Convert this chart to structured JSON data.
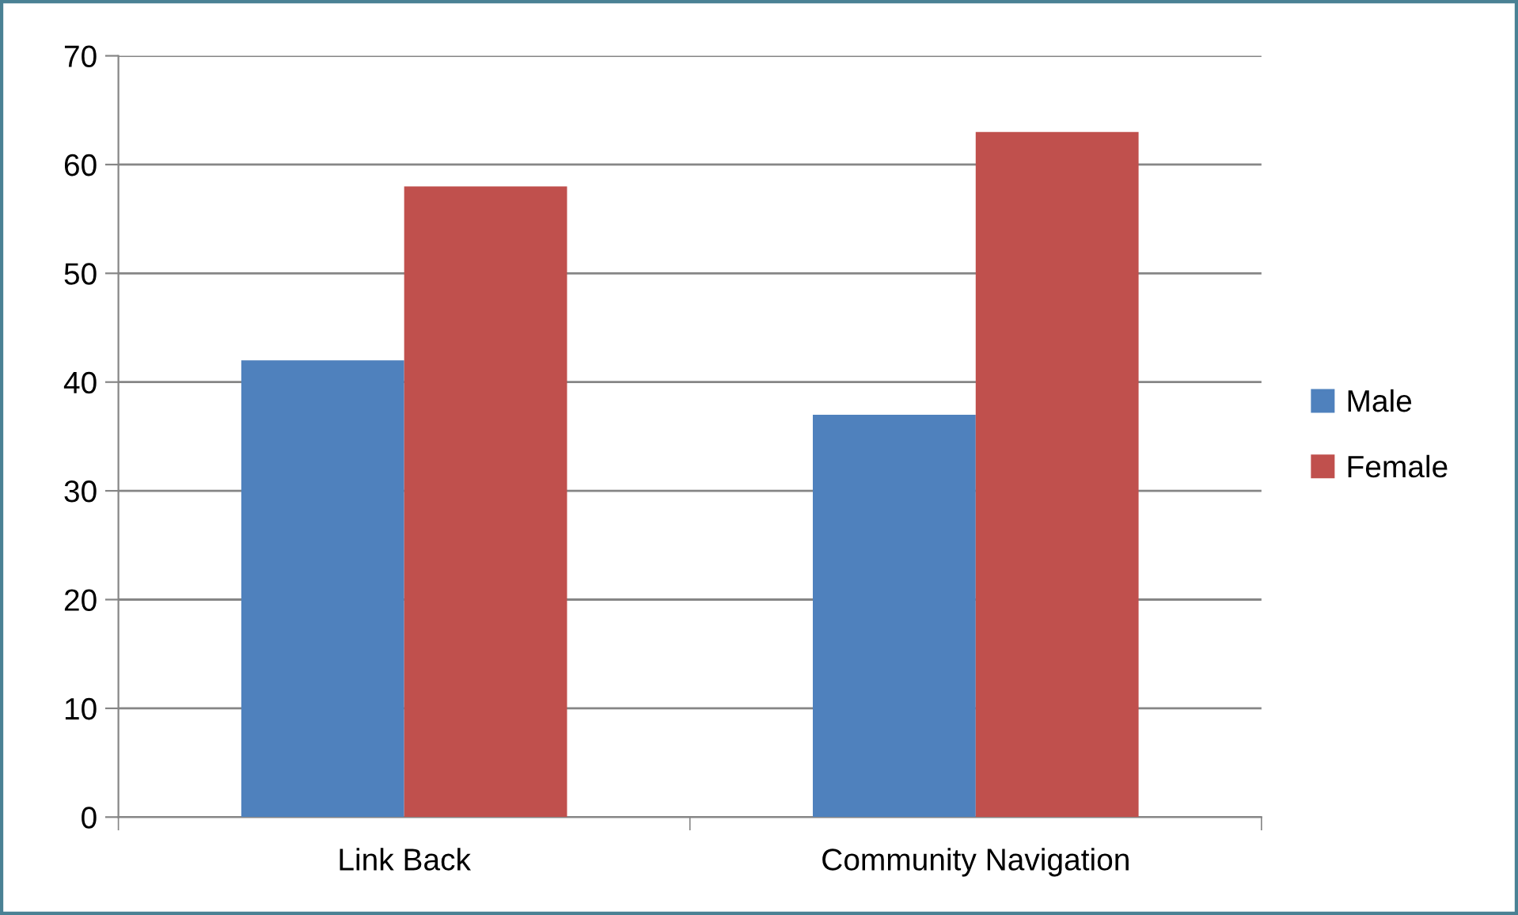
{
  "chart_data": {
    "type": "bar",
    "categories": [
      "Link Back",
      "Community Navigation"
    ],
    "series": [
      {
        "name": "Male",
        "color": "#4f81bd",
        "values": [
          42,
          37
        ]
      },
      {
        "name": "Female",
        "color": "#c0504d",
        "values": [
          58,
          63
        ]
      }
    ],
    "ylim": [
      0,
      70
    ],
    "yticks": [
      0,
      10,
      20,
      30,
      40,
      50,
      60,
      70
    ],
    "grid": "y",
    "legend": "right"
  }
}
